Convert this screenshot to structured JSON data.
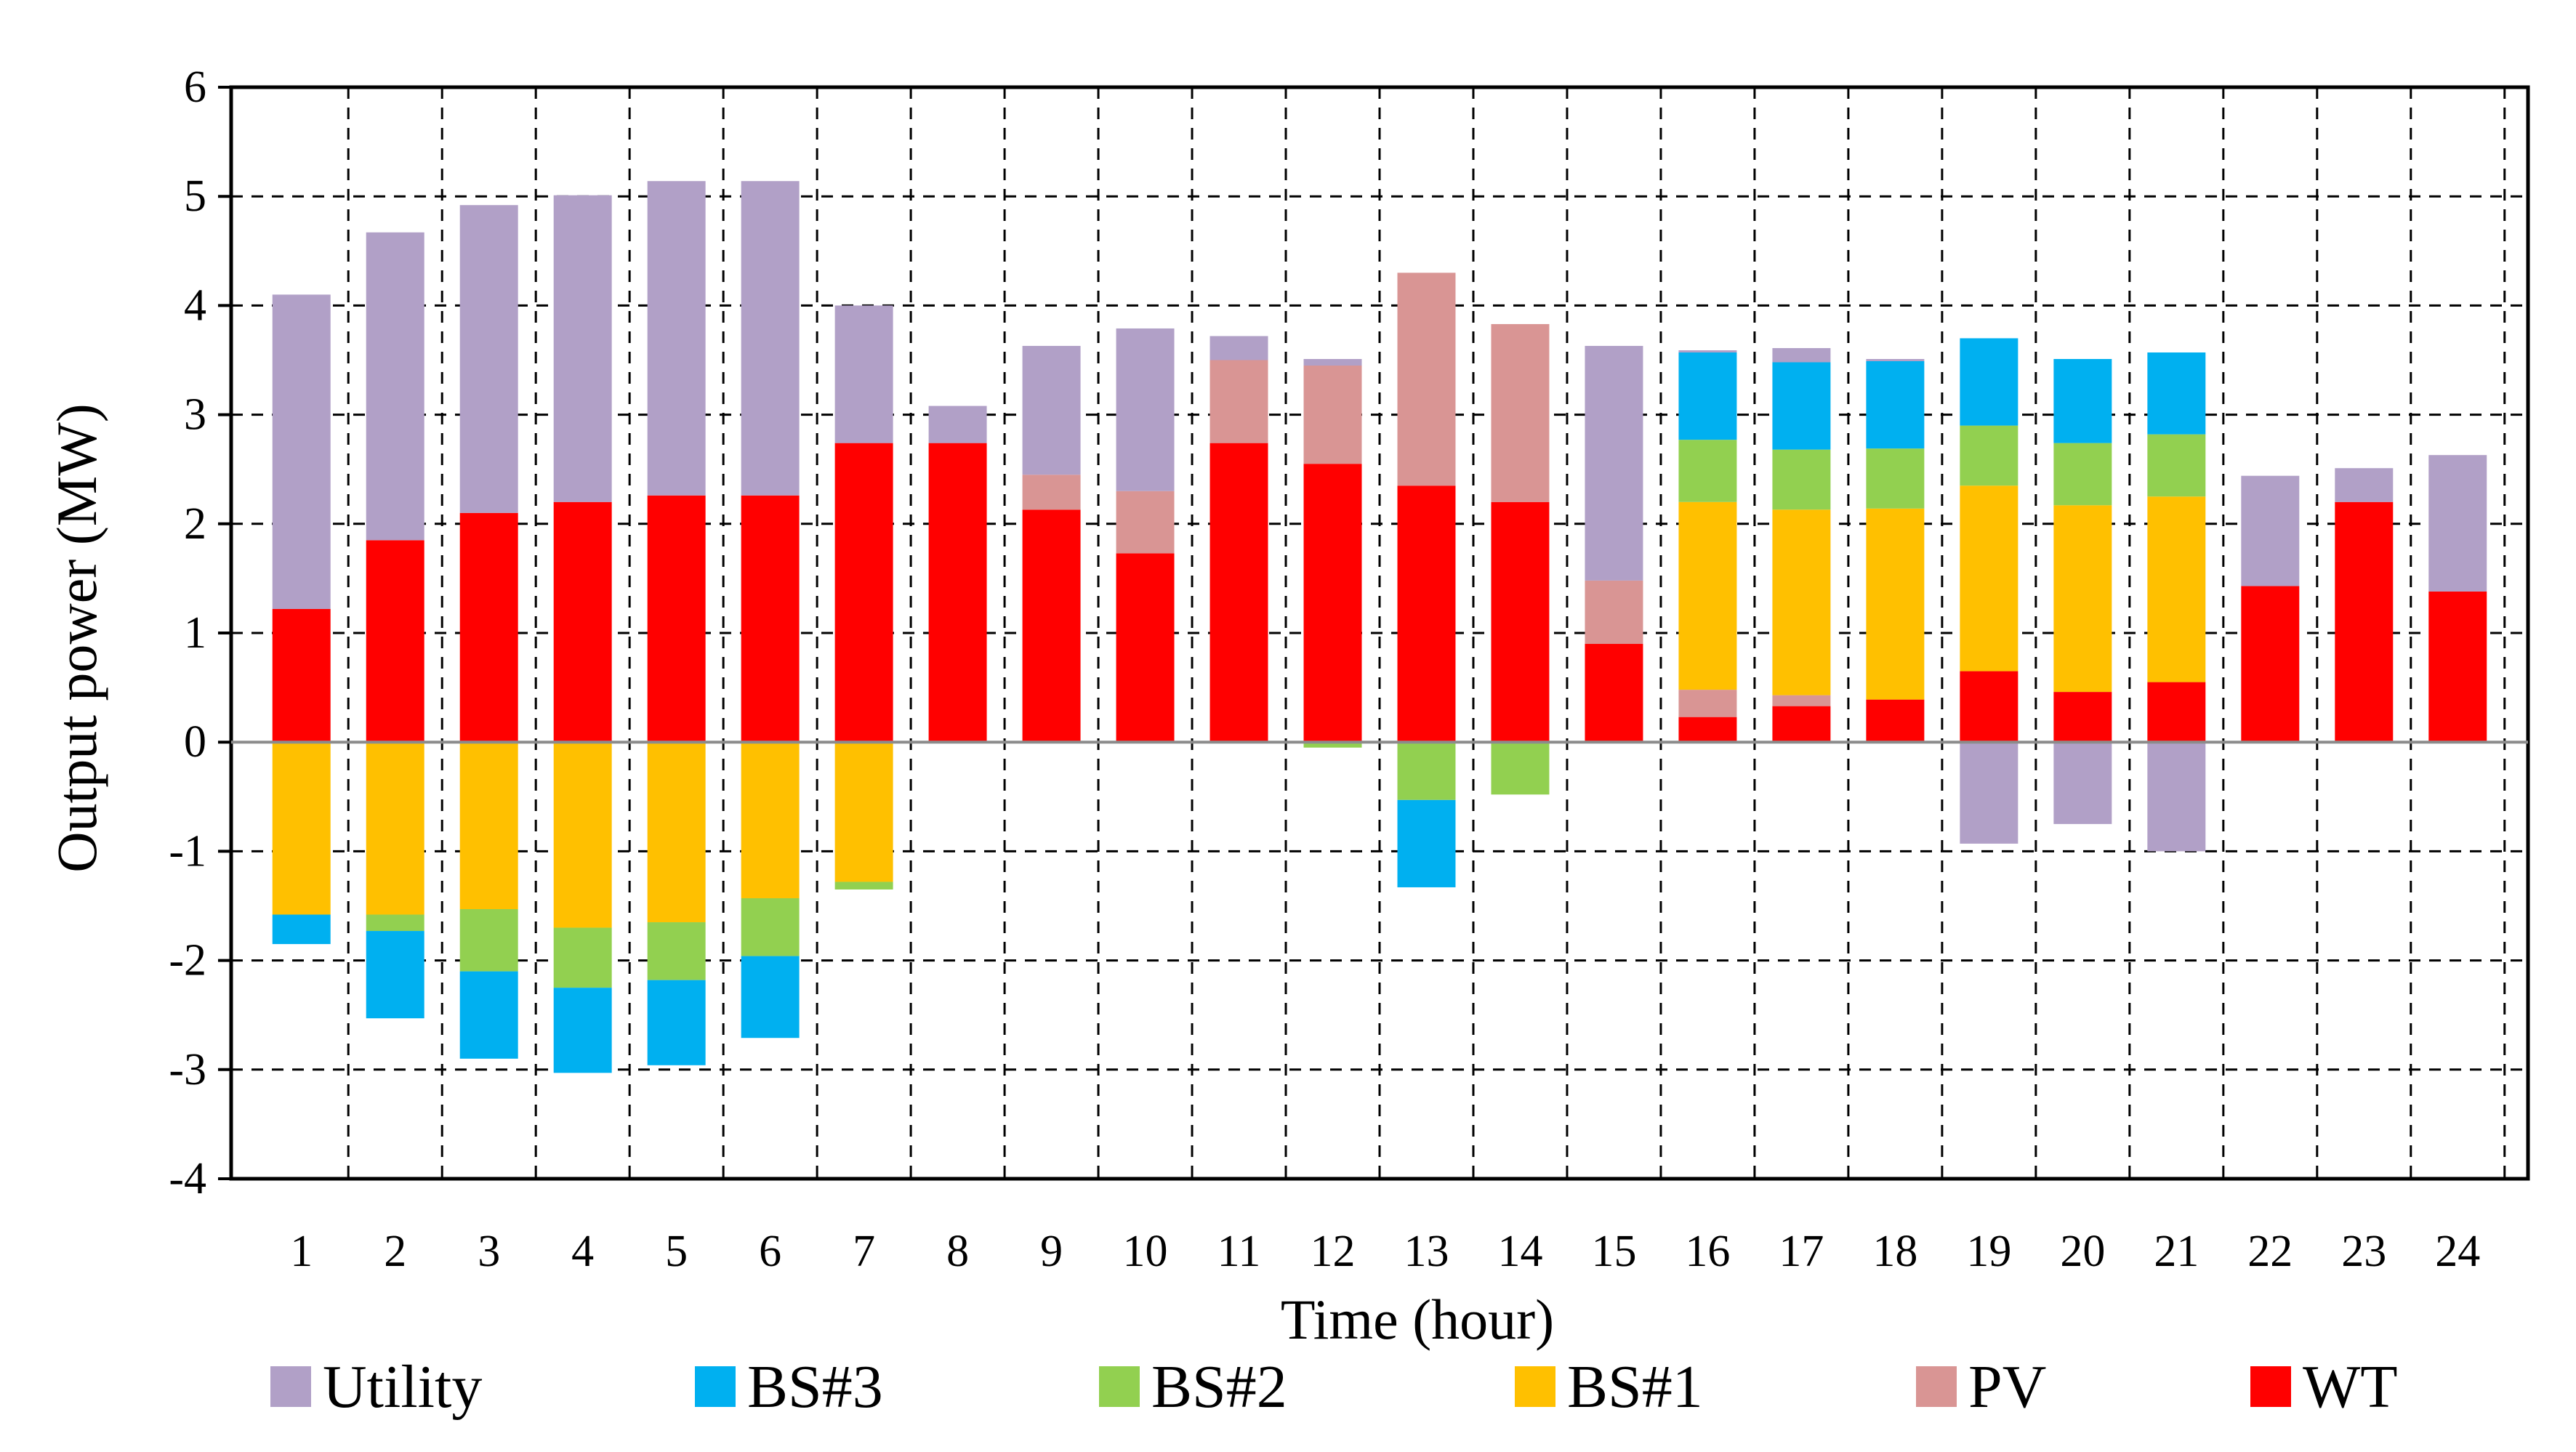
{
  "chart_data": {
    "type": "bar",
    "stacked": true,
    "title": "",
    "xlabel": "Time (hour)",
    "ylabel": "Output power (MW)",
    "ylim": [
      -4,
      6
    ],
    "yticks": [
      "6",
      "5",
      "4",
      "3",
      "2",
      "1",
      "0",
      "-1",
      "-2",
      "-3",
      "-4"
    ],
    "ytick_values": [
      6,
      5,
      4,
      3,
      2,
      1,
      0,
      -1,
      -2,
      -3,
      -4
    ],
    "categories": [
      "1",
      "2",
      "3",
      "4",
      "5",
      "6",
      "7",
      "8",
      "9",
      "10",
      "11",
      "12",
      "13",
      "14",
      "15",
      "16",
      "17",
      "18",
      "19",
      "20",
      "21",
      "22",
      "23",
      "24"
    ],
    "grid": "dashed",
    "legend_position": "bottom",
    "series": [
      {
        "name": "WT",
        "color": "#ff0000",
        "values": [
          1.22,
          1.85,
          2.1,
          2.2,
          2.26,
          2.26,
          2.74,
          2.74,
          2.13,
          1.73,
          2.74,
          2.55,
          2.35,
          2.2,
          0.9,
          0.23,
          0.33,
          0.39,
          0.65,
          0.46,
          0.55,
          1.43,
          2.2,
          1.38
        ]
      },
      {
        "name": "PV",
        "color": "#d99594",
        "values": [
          0,
          0,
          0,
          0,
          0,
          0,
          0,
          0,
          0.32,
          0.57,
          0.76,
          0.9,
          1.95,
          1.63,
          0.58,
          0.25,
          0.1,
          0,
          0,
          0,
          0,
          0,
          0,
          0
        ]
      },
      {
        "name": "BS#1",
        "color": "#ffc000",
        "values": [
          -1.58,
          -1.58,
          -1.53,
          -1.7,
          -1.65,
          -1.43,
          -1.28,
          0,
          0,
          0,
          0,
          0,
          0,
          0,
          0,
          1.72,
          1.7,
          1.75,
          1.7,
          1.71,
          1.7,
          0,
          0,
          0
        ]
      },
      {
        "name": "BS#2",
        "color": "#92d050",
        "values": [
          0,
          -0.15,
          -0.57,
          -0.55,
          -0.53,
          -0.53,
          -0.07,
          0,
          0,
          0,
          0,
          -0.05,
          -0.53,
          -0.48,
          0,
          0.57,
          0.55,
          0.55,
          0.55,
          0.57,
          0.57,
          0,
          0,
          0
        ]
      },
      {
        "name": "BS#3",
        "color": "#00b0f0",
        "values": [
          -0.27,
          -0.8,
          -0.8,
          -0.78,
          -0.78,
          -0.75,
          0,
          0,
          0,
          0,
          0,
          0,
          -0.8,
          0,
          0,
          0.8,
          0.8,
          0.8,
          0.8,
          0.77,
          0.75,
          0,
          0,
          0
        ]
      },
      {
        "name": "Utility",
        "color": "#b1a0c7",
        "values": [
          2.88,
          2.82,
          2.82,
          2.81,
          2.88,
          2.88,
          1.26,
          0.34,
          1.18,
          1.49,
          0.22,
          0.06,
          0,
          0,
          2.15,
          0.02,
          0.13,
          0.02,
          0,
          0,
          0,
          1.01,
          0.31,
          1.25
        ],
        "negative_values": [
          0,
          0,
          0,
          0,
          0,
          0,
          0,
          0,
          0,
          0,
          0,
          0,
          0,
          0,
          0,
          0,
          0,
          0,
          -0.93,
          -0.75,
          -1.0,
          0,
          0,
          0
        ]
      }
    ],
    "legend": [
      "Utility",
      "BS#3",
      "BS#2",
      "BS#1",
      "PV",
      "WT"
    ]
  }
}
